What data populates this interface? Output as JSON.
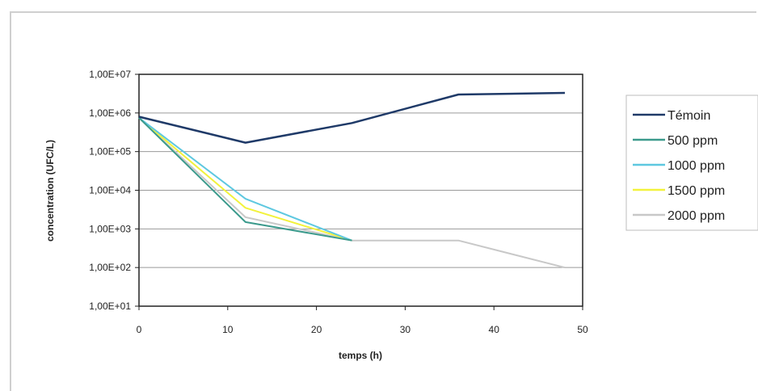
{
  "chart_data": {
    "type": "line",
    "title": "",
    "xlabel": "temps (h)",
    "ylabel": "concentration (UFC/L)",
    "xlim": [
      0,
      50
    ],
    "ylim": [
      10,
      10000000
    ],
    "yscale": "log",
    "grid": "horizontal",
    "legend_position": "right",
    "x_ticks": [
      "0",
      "10",
      "20",
      "30",
      "40",
      "50"
    ],
    "y_ticks": [
      "1,00E+07",
      "1,00E+06",
      "1,00E+05",
      "1,00E+04",
      "1,00E+03",
      "1,00E+02",
      "1,00E+01"
    ],
    "x_tick_values": [
      0,
      10,
      20,
      30,
      40,
      50
    ],
    "y_tick_values": [
      10000000,
      1000000,
      100000,
      10000,
      1000,
      100,
      10
    ],
    "series": [
      {
        "name": "Témoin",
        "color": "#1f3a68",
        "x": [
          0,
          12,
          24,
          36,
          48
        ],
        "y": [
          800000,
          170000,
          550000,
          3000000,
          3300000
        ]
      },
      {
        "name": "500 ppm",
        "color": "#3b9a8c",
        "x": [
          0,
          12,
          24
        ],
        "y": [
          750000,
          1500,
          500
        ]
      },
      {
        "name": "1000 ppm",
        "color": "#5ec8e0",
        "x": [
          0,
          12,
          24
        ],
        "y": [
          750000,
          6000,
          500
        ]
      },
      {
        "name": "1500 ppm",
        "color": "#f2f23c",
        "x": [
          0,
          12,
          24
        ],
        "y": [
          750000,
          3500,
          500
        ]
      },
      {
        "name": "2000 ppm",
        "color": "#c8c8c8",
        "x": [
          0,
          12,
          24,
          36,
          48
        ],
        "y": [
          750000,
          2000,
          500,
          500,
          100
        ]
      }
    ]
  }
}
